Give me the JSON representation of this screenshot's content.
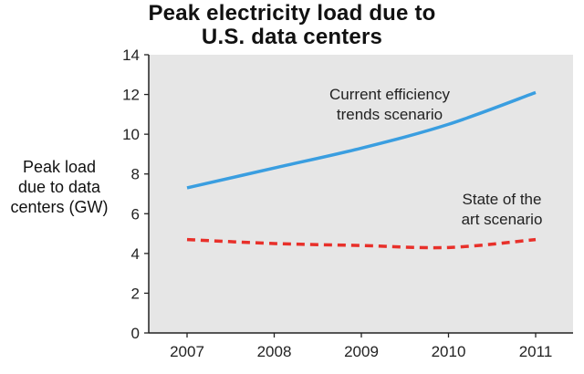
{
  "chart_data": {
    "type": "line",
    "title_lines": [
      "Peak electricity load due to",
      "U.S. data centers"
    ],
    "ylabel_lines": [
      "Peak load",
      "due to data",
      "centers (GW)"
    ],
    "xlabel": "",
    "x": [
      2007,
      2008,
      2009,
      2010,
      2011
    ],
    "ylim": [
      0,
      14
    ],
    "yticks": [
      0,
      2,
      4,
      6,
      8,
      10,
      12,
      14
    ],
    "grid": false,
    "series": [
      {
        "name": "Current efficiency trends scenario",
        "label_lines": [
          "Current efficiency",
          "trends scenario"
        ],
        "values": [
          7.3,
          8.3,
          9.3,
          10.5,
          12.1
        ],
        "color": "#3a9ee0",
        "style": "solid"
      },
      {
        "name": "State of the art scenario",
        "label_lines": [
          "State of the",
          "art scenario"
        ],
        "values": [
          4.7,
          4.5,
          4.4,
          4.3,
          4.7
        ],
        "color": "#e8302a",
        "style": "dashed"
      }
    ],
    "plot_background": "#e6e6e6"
  }
}
